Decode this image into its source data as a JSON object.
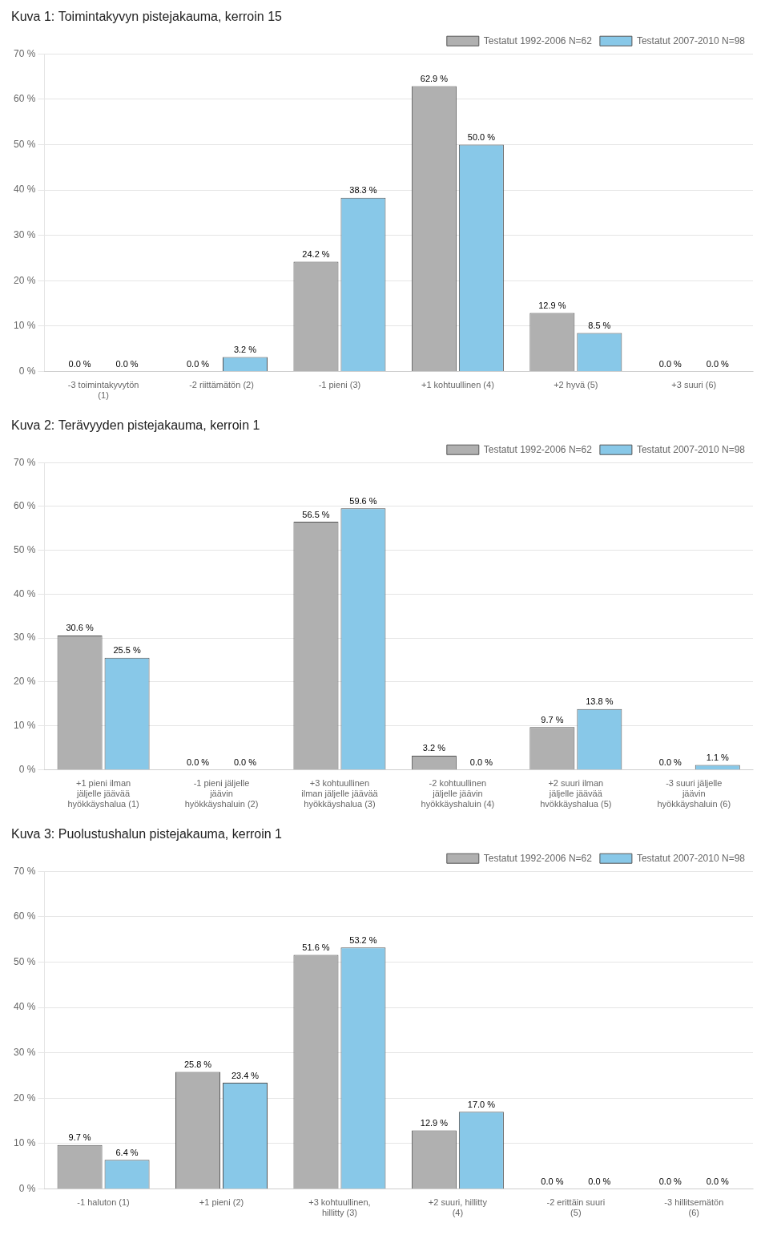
{
  "chart_data": [
    {
      "type": "bar",
      "title": "Kuva 1: Toimintakyvyn pistejakauma, kerroin 15",
      "categories": [
        "-3 toimintakyvytön\n(1)",
        "-2 riittämätön (2)",
        "-1 pieni (3)",
        "+1 kohtuullinen (4)",
        "+2 hyvä (5)",
        "+3 suuri (6)"
      ],
      "series": [
        {
          "name": "Testatut 1992-2006 N=62",
          "color": "#b0b0b0",
          "values": [
            0.0,
            0.0,
            24.2,
            62.9,
            12.9,
            0.0
          ],
          "value_labels": [
            "0.0 %",
            "0.0 %",
            "24.2 %",
            "62.9 %",
            "12.9 %",
            "0.0 %"
          ]
        },
        {
          "name": "Testatut 2007-2010 N=98",
          "color": "#88c8e8",
          "values": [
            0.0,
            3.2,
            38.3,
            50.0,
            8.5,
            0.0
          ],
          "value_labels": [
            "0.0 %",
            "3.2 %",
            "38.3 %",
            "50.0 %",
            "8.5 %",
            "0.0 %"
          ]
        }
      ],
      "ylim": [
        0,
        70
      ],
      "yticks": [
        {
          "value": 0,
          "label": "0 %"
        },
        {
          "value": 10,
          "label": "10 %"
        },
        {
          "value": 20,
          "label": "20 %"
        },
        {
          "value": 30,
          "label": "30 %"
        },
        {
          "value": 40,
          "label": "40 %"
        },
        {
          "value": 50,
          "label": "50 %"
        },
        {
          "value": 60,
          "label": "60 %"
        },
        {
          "value": 70,
          "label": "70 %"
        }
      ],
      "grid": true,
      "legend": "upper right",
      "data_labels": true
    },
    {
      "type": "bar",
      "title": "Kuva 2: Terävyyden pistejakauma, kerroin 1",
      "categories": [
        "+1 pieni ilman\njäljelle jäävää\nhyökkäyshalua (1)",
        "-1 pieni jäljelle\njäävin\nhyökkäyshaluin (2)",
        "+3 kohtuullinen\nilman jäljelle jäävää\nhyökkäyshalua (3)",
        "-2 kohtuullinen\njäljelle jäävin\nhyökkäyshaluin (4)",
        "+2 suuri ilman\njäljelle jäävää\nhvökkäyshalua (5)",
        "-3 suuri jäljelle\njäävin\nhyökkäyshaluin (6)"
      ],
      "series": [
        {
          "name": "Testatut 1992-2006 N=62",
          "color": "#b0b0b0",
          "values": [
            30.6,
            0.0,
            56.5,
            3.2,
            9.7,
            0.0
          ],
          "value_labels": [
            "30.6 %",
            "0.0 %",
            "56.5 %",
            "3.2 %",
            "9.7 %",
            "0.0 %"
          ]
        },
        {
          "name": "Testatut 2007-2010 N=98",
          "color": "#88c8e8",
          "values": [
            25.5,
            0.0,
            59.6,
            0.0,
            13.8,
            1.1
          ],
          "value_labels": [
            "25.5 %",
            "0.0 %",
            "59.6 %",
            "0.0 %",
            "13.8 %",
            "1.1 %"
          ]
        }
      ],
      "ylim": [
        0,
        70
      ],
      "yticks": [
        {
          "value": 0,
          "label": "0 %"
        },
        {
          "value": 10,
          "label": "10 %"
        },
        {
          "value": 20,
          "label": "20 %"
        },
        {
          "value": 30,
          "label": "30 %"
        },
        {
          "value": 40,
          "label": "40 %"
        },
        {
          "value": 50,
          "label": "50 %"
        },
        {
          "value": 60,
          "label": "60 %"
        },
        {
          "value": 70,
          "label": "70 %"
        }
      ],
      "grid": true,
      "legend": "upper right",
      "data_labels": true
    },
    {
      "type": "bar",
      "title": "Kuva 3: Puolustushalun pistejakauma, kerroin 1",
      "categories": [
        "-1 haluton (1)",
        "+1 pieni (2)",
        "+3 kohtuullinen,\nhillitty (3)",
        "+2 suuri, hillitty\n(4)",
        "-2 erittäin suuri\n(5)",
        "-3 hillitsemätön\n(6)"
      ],
      "series": [
        {
          "name": "Testatut 1992-2006 N=62",
          "color": "#b0b0b0",
          "values": [
            9.7,
            25.8,
            51.6,
            12.9,
            0.0,
            0.0
          ],
          "value_labels": [
            "9.7 %",
            "25.8 %",
            "51.6 %",
            "12.9 %",
            "0.0 %",
            "0.0 %"
          ]
        },
        {
          "name": "Testatut 2007-2010 N=98",
          "color": "#88c8e8",
          "values": [
            6.4,
            23.4,
            53.2,
            17.0,
            0.0,
            0.0
          ],
          "value_labels": [
            "6.4 %",
            "23.4 %",
            "53.2 %",
            "17.0 %",
            "0.0 %",
            "0.0 %"
          ]
        }
      ],
      "ylim": [
        0,
        70
      ],
      "yticks": [
        {
          "value": 0,
          "label": "0 %"
        },
        {
          "value": 10,
          "label": "10 %"
        },
        {
          "value": 20,
          "label": "20 %"
        },
        {
          "value": 30,
          "label": "30 %"
        },
        {
          "value": 40,
          "label": "40 %"
        },
        {
          "value": 50,
          "label": "50 %"
        },
        {
          "value": 60,
          "label": "60 %"
        },
        {
          "value": 70,
          "label": "70 %"
        }
      ],
      "grid": true,
      "legend": "upper right",
      "data_labels": true
    }
  ]
}
